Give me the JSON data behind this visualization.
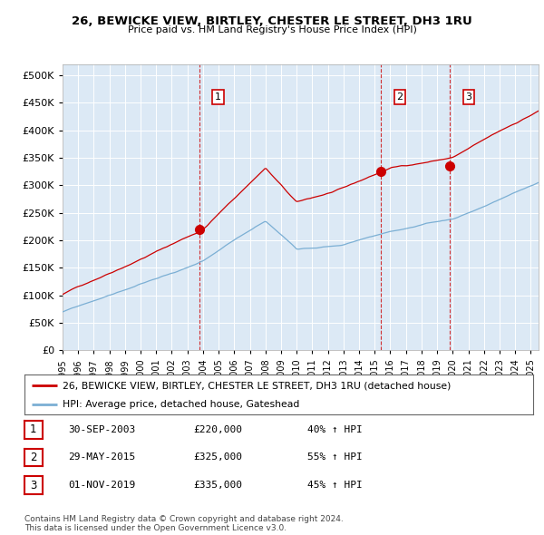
{
  "title": "26, BEWICKE VIEW, BIRTLEY, CHESTER LE STREET, DH3 1RU",
  "subtitle": "Price paid vs. HM Land Registry's House Price Index (HPI)",
  "ylim": [
    0,
    520000
  ],
  "yticks": [
    0,
    50000,
    100000,
    150000,
    200000,
    250000,
    300000,
    350000,
    400000,
    450000,
    500000
  ],
  "ytick_labels": [
    "£0",
    "£50K",
    "£100K",
    "£150K",
    "£200K",
    "£250K",
    "£300K",
    "£350K",
    "£400K",
    "£450K",
    "£500K"
  ],
  "background_color": "#dce9f5",
  "red_line_color": "#cc0000",
  "blue_line_color": "#7bafd4",
  "sale1_date_x": 2003.75,
  "sale1_price": 220000,
  "sale2_date_x": 2015.41,
  "sale2_price": 325000,
  "sale3_date_x": 2019.83,
  "sale3_price": 335000,
  "legend_label_red": "26, BEWICKE VIEW, BIRTLEY, CHESTER LE STREET, DH3 1RU (detached house)",
  "legend_label_blue": "HPI: Average price, detached house, Gateshead",
  "table_rows": [
    [
      "1",
      "30-SEP-2003",
      "£220,000",
      "40% ↑ HPI"
    ],
    [
      "2",
      "29-MAY-2015",
      "£325,000",
      "55% ↑ HPI"
    ],
    [
      "3",
      "01-NOV-2019",
      "£335,000",
      "45% ↑ HPI"
    ]
  ],
  "footer_text": "Contains HM Land Registry data © Crown copyright and database right 2024.\nThis data is licensed under the Open Government Licence v3.0.",
  "xmin": 1995.0,
  "xmax": 2025.5
}
